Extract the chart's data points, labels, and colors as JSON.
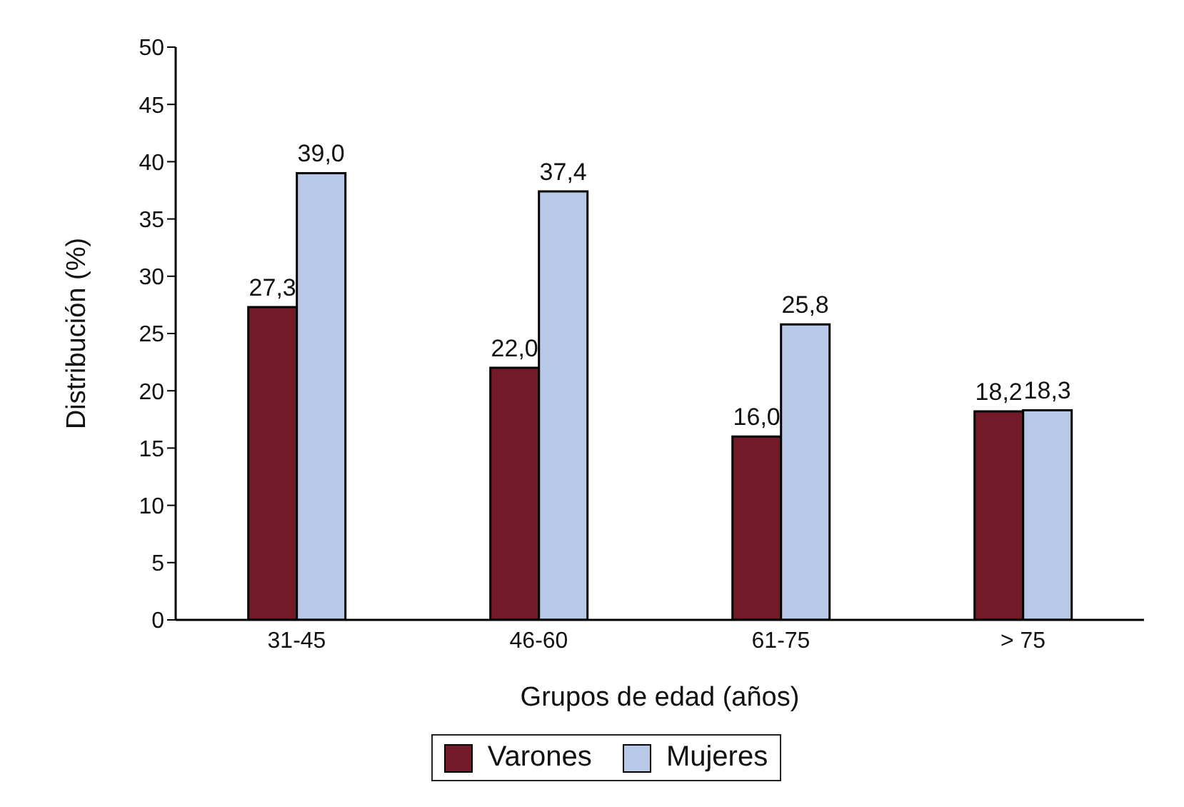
{
  "chart_data": {
    "type": "bar",
    "xlabel": "Grupos de edad (años)",
    "ylabel": "Distribución (%)",
    "categories": [
      "31-45",
      "46-60",
      "61-75",
      "> 75"
    ],
    "series": [
      {
        "name": "Varones",
        "color": "#721a27",
        "values": [
          27.3,
          22.0,
          16.0,
          18.2
        ],
        "value_labels": [
          "27,3",
          "22,0",
          "16,0",
          "18,2"
        ]
      },
      {
        "name": "Mujeres",
        "color": "#b8c9e8",
        "values": [
          39.0,
          37.4,
          25.8,
          18.3
        ],
        "value_labels": [
          "39,0",
          "37,4",
          "25,8",
          "18,3"
        ]
      }
    ],
    "ylim": [
      0,
      50
    ],
    "yticks": [
      0,
      5,
      10,
      15,
      20,
      25,
      30,
      35,
      40,
      45,
      50
    ],
    "grid": false,
    "legend": "bottom"
  }
}
